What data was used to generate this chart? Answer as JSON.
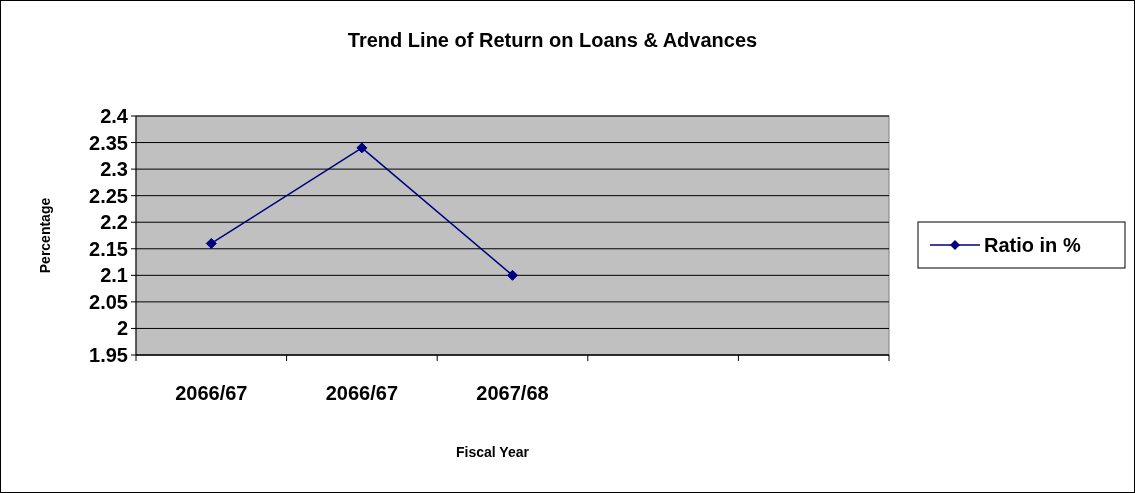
{
  "chart_data": {
    "type": "line",
    "title": "Trend Line of Return on Loans & Advances",
    "xlabel": "Fiscal Year",
    "ylabel": "Percentage",
    "categories": [
      "2066/67",
      "2066/67",
      "2067/68",
      null,
      null
    ],
    "series": [
      {
        "name": "Ratio in %",
        "color": "#000080",
        "values": [
          2.16,
          2.34,
          2.1,
          null,
          null
        ]
      }
    ],
    "ylim": [
      1.95,
      2.4
    ],
    "yticks": [
      1.95,
      2,
      2.05,
      2.1,
      2.15,
      2.2,
      2.25,
      2.3,
      2.35,
      2.4
    ],
    "grid": "y",
    "legend": "right",
    "marker": "diamond",
    "line_style": "solid"
  }
}
